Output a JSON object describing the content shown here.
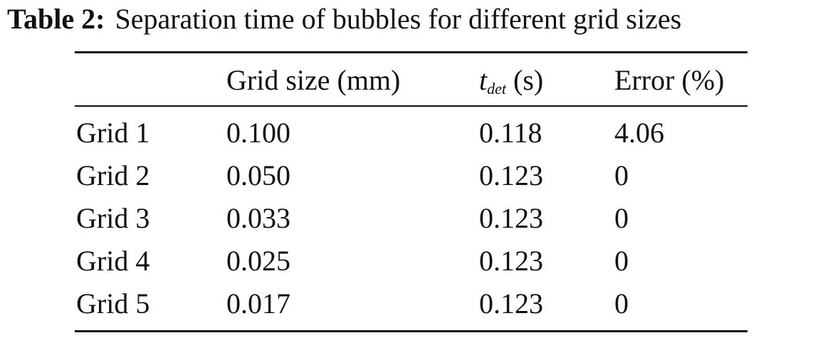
{
  "caption": {
    "label": "Table 2:",
    "text": "Separation time of bubbles for different grid sizes"
  },
  "table": {
    "headers": {
      "col0": "",
      "col1": "Grid size (mm)",
      "col2_var": "t",
      "col2_sub": "det",
      "col2_unit": " (s)",
      "col3": "Error (%)"
    },
    "rows": [
      {
        "name": "Grid 1",
        "grid_size": "0.100",
        "t_det": "0.118",
        "error": "4.06"
      },
      {
        "name": "Grid 2",
        "grid_size": "0.050",
        "t_det": "0.123",
        "error": "0"
      },
      {
        "name": "Grid 3",
        "grid_size": "0.033",
        "t_det": "0.123",
        "error": "0"
      },
      {
        "name": "Grid 4",
        "grid_size": "0.025",
        "t_det": "0.123",
        "error": "0"
      },
      {
        "name": "Grid 5",
        "grid_size": "0.017",
        "t_det": "0.123",
        "error": "0"
      }
    ]
  }
}
